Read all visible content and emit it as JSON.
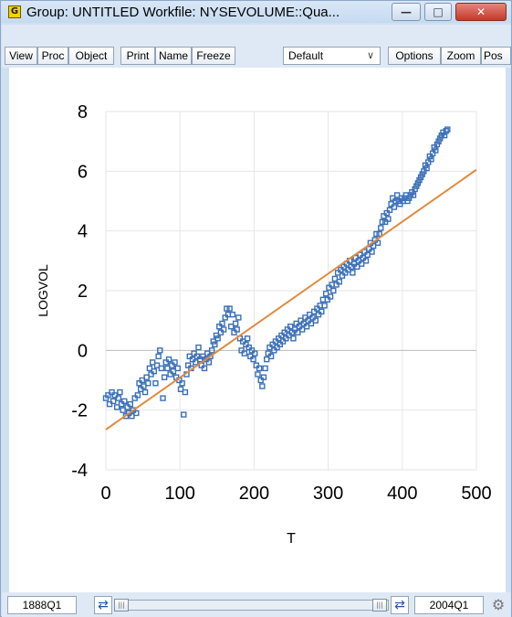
{
  "window": {
    "title": "Group: UNTITLED   Workfile: NYSEVOLUME::Qua...",
    "icon_letter": "G"
  },
  "toolbar": {
    "buttons": [
      "View",
      "Proc",
      "Object",
      "Print",
      "Name",
      "Freeze"
    ],
    "select_value": "Default",
    "buttons_right": [
      "Options",
      "Zoom",
      "Pos"
    ]
  },
  "chart_data": {
    "type": "scatter",
    "xlabel": "T",
    "ylabel": "LOGVOL",
    "xlim": [
      0,
      500
    ],
    "ylim": [
      -4,
      8
    ],
    "x_ticks": [
      "0",
      "100",
      "200",
      "300",
      "400",
      "500"
    ],
    "y_ticks": [
      "8",
      "6",
      "4",
      "2",
      "0",
      "-2",
      "-4"
    ],
    "grid": true,
    "marker": "open-square",
    "fit_line": {
      "from": [
        0,
        -2.65
      ],
      "to": [
        500,
        6.05
      ]
    },
    "series": [
      {
        "points": [
          [
            0,
            -1.6
          ],
          [
            3,
            -1.5
          ],
          [
            5,
            -1.8
          ],
          [
            8,
            -1.4
          ],
          [
            10,
            -1.7
          ],
          [
            12,
            -1.5
          ],
          [
            15,
            -1.9
          ],
          [
            17,
            -1.6
          ],
          [
            19,
            -1.4
          ],
          [
            21,
            -1.8
          ],
          [
            23,
            -2.0
          ],
          [
            25,
            -1.7
          ],
          [
            27,
            -2.2
          ],
          [
            29,
            -1.9
          ],
          [
            31,
            -2.1
          ],
          [
            33,
            -1.8
          ],
          [
            35,
            -2.2
          ],
          [
            37,
            -2.0
          ],
          [
            39,
            -1.6
          ],
          [
            41,
            -2.1
          ],
          [
            43,
            -1.5
          ],
          [
            45,
            -1.1
          ],
          [
            47,
            -1.3
          ],
          [
            49,
            -1.0
          ],
          [
            51,
            -1.2
          ],
          [
            53,
            -1.4
          ],
          [
            55,
            -0.9
          ],
          [
            57,
            -1.1
          ],
          [
            59,
            -0.6
          ],
          [
            61,
            -0.8
          ],
          [
            63,
            -0.4
          ],
          [
            65,
            -0.7
          ],
          [
            67,
            -1.1
          ],
          [
            69,
            -0.5
          ],
          [
            71,
            -0.2
          ],
          [
            73,
            0.0
          ],
          [
            75,
            -0.6
          ],
          [
            77,
            -1.6
          ],
          [
            79,
            -0.9
          ],
          [
            81,
            -0.4
          ],
          [
            83,
            -0.6
          ],
          [
            85,
            -0.3
          ],
          [
            87,
            -0.8
          ],
          [
            89,
            -0.5
          ],
          [
            91,
            -0.7
          ],
          [
            93,
            -0.4
          ],
          [
            95,
            -0.9
          ],
          [
            97,
            -0.6
          ],
          [
            99,
            -1.0
          ],
          [
            101,
            -1.3
          ],
          [
            103,
            -1.1
          ],
          [
            105,
            -2.15
          ],
          [
            107,
            -1.4
          ],
          [
            109,
            -0.8
          ],
          [
            111,
            -0.5
          ],
          [
            113,
            -0.2
          ],
          [
            115,
            -0.6
          ],
          [
            117,
            -0.3
          ],
          [
            119,
            -0.1
          ],
          [
            121,
            -0.4
          ],
          [
            123,
            -0.2
          ],
          [
            125,
            0.1
          ],
          [
            127,
            -0.3
          ],
          [
            129,
            -0.5
          ],
          [
            131,
            -0.2
          ],
          [
            133,
            -0.6
          ],
          [
            135,
            -0.3
          ],
          [
            137,
            -0.1
          ],
          [
            139,
            -0.4
          ],
          [
            141,
            -0.2
          ],
          [
            143,
            0.0
          ],
          [
            145,
            0.3
          ],
          [
            147,
            0.2
          ],
          [
            149,
            0.5
          ],
          [
            151,
            0.4
          ],
          [
            153,
            0.8
          ],
          [
            155,
            0.6
          ],
          [
            157,
            0.9
          ],
          [
            159,
            0.7
          ],
          [
            161,
            1.1
          ],
          [
            163,
            1.4
          ],
          [
            165,
            1.2
          ],
          [
            167,
            1.4
          ],
          [
            169,
            0.8
          ],
          [
            171,
            1.2
          ],
          [
            173,
            0.6
          ],
          [
            175,
            0.9
          ],
          [
            177,
            0.7
          ],
          [
            179,
            1.1
          ],
          [
            181,
            0.4
          ],
          [
            183,
            0.0
          ],
          [
            185,
            0.3
          ],
          [
            187,
            -0.1
          ],
          [
            189,
            0.2
          ],
          [
            191,
            0.4
          ],
          [
            193,
            0.1
          ],
          [
            195,
            -0.2
          ],
          [
            197,
            0.0
          ],
          [
            199,
            -0.3
          ],
          [
            201,
            -0.1
          ],
          [
            203,
            -0.5
          ],
          [
            205,
            -0.8
          ],
          [
            207,
            -0.6
          ],
          [
            209,
            -1.0
          ],
          [
            211,
            -1.2
          ],
          [
            213,
            -0.9
          ],
          [
            215,
            -0.6
          ],
          [
            217,
            -0.3
          ],
          [
            219,
            -0.1
          ],
          [
            221,
            0.1
          ],
          [
            223,
            -0.2
          ],
          [
            225,
            0.2
          ],
          [
            227,
            0.0
          ],
          [
            229,
            0.3
          ],
          [
            231,
            0.1
          ],
          [
            233,
            0.4
          ],
          [
            235,
            0.2
          ],
          [
            237,
            0.5
          ],
          [
            239,
            0.3
          ],
          [
            241,
            0.6
          ],
          [
            243,
            0.4
          ],
          [
            245,
            0.7
          ],
          [
            247,
            0.5
          ],
          [
            249,
            0.8
          ],
          [
            251,
            0.6
          ],
          [
            253,
            0.4
          ],
          [
            255,
            0.7
          ],
          [
            257,
            0.9
          ],
          [
            259,
            0.6
          ],
          [
            261,
            0.8
          ],
          [
            263,
            1.0
          ],
          [
            265,
            0.7
          ],
          [
            267,
            0.9
          ],
          [
            269,
            1.1
          ],
          [
            271,
            0.8
          ],
          [
            273,
            1.0
          ],
          [
            275,
            1.2
          ],
          [
            277,
            0.9
          ],
          [
            279,
            1.1
          ],
          [
            281,
            1.3
          ],
          [
            283,
            1.0
          ],
          [
            285,
            1.4
          ],
          [
            287,
            1.2
          ],
          [
            289,
            1.5
          ],
          [
            291,
            1.3
          ],
          [
            293,
            1.7
          ],
          [
            295,
            1.5
          ],
          [
            297,
            1.9
          ],
          [
            299,
            1.7
          ],
          [
            301,
            2.1
          ],
          [
            303,
            1.8
          ],
          [
            305,
            2.2
          ],
          [
            307,
            2.0
          ],
          [
            309,
            2.4
          ],
          [
            311,
            2.2
          ],
          [
            313,
            2.6
          ],
          [
            315,
            2.3
          ],
          [
            317,
            2.7
          ],
          [
            319,
            2.5
          ],
          [
            321,
            2.8
          ],
          [
            323,
            2.6
          ],
          [
            325,
            2.9
          ],
          [
            327,
            2.7
          ],
          [
            329,
            3.0
          ],
          [
            331,
            2.8
          ],
          [
            333,
            2.6
          ],
          [
            335,
            2.9
          ],
          [
            337,
            3.1
          ],
          [
            339,
            2.8
          ],
          [
            341,
            3.0
          ],
          [
            343,
            3.2
          ],
          [
            345,
            2.9
          ],
          [
            347,
            3.1
          ],
          [
            349,
            3.3
          ],
          [
            351,
            3.0
          ],
          [
            353,
            3.2
          ],
          [
            355,
            3.4
          ],
          [
            357,
            3.6
          ],
          [
            359,
            3.3
          ],
          [
            361,
            3.5
          ],
          [
            363,
            3.7
          ],
          [
            365,
            3.9
          ],
          [
            367,
            3.6
          ],
          [
            369,
            3.9
          ],
          [
            371,
            4.1
          ],
          [
            373,
            4.3
          ],
          [
            375,
            4.5
          ],
          [
            377,
            4.3
          ],
          [
            379,
            4.6
          ],
          [
            381,
            4.4
          ],
          [
            383,
            4.7
          ],
          [
            385,
            4.9
          ],
          [
            387,
            5.1
          ],
          [
            389,
            4.8
          ],
          [
            391,
            5.0
          ],
          [
            393,
            5.2
          ],
          [
            395,
            5.0
          ],
          [
            397,
            4.9
          ],
          [
            399,
            5.1
          ],
          [
            401,
            5.0
          ],
          [
            403,
            5.1
          ],
          [
            405,
            5.2
          ],
          [
            407,
            5.0
          ],
          [
            409,
            5.1
          ],
          [
            411,
            5.2
          ],
          [
            413,
            5.3
          ],
          [
            415,
            5.2
          ],
          [
            417,
            5.4
          ],
          [
            419,
            5.5
          ],
          [
            421,
            5.6
          ],
          [
            423,
            5.7
          ],
          [
            425,
            5.8
          ],
          [
            427,
            5.9
          ],
          [
            429,
            6.0
          ],
          [
            431,
            6.2
          ],
          [
            433,
            6.1
          ],
          [
            435,
            6.3
          ],
          [
            437,
            6.5
          ],
          [
            439,
            6.4
          ],
          [
            441,
            6.6
          ],
          [
            443,
            6.8
          ],
          [
            445,
            6.7
          ],
          [
            447,
            6.9
          ],
          [
            449,
            7.0
          ],
          [
            451,
            7.1
          ],
          [
            453,
            7.2
          ],
          [
            455,
            7.3
          ],
          [
            457,
            7.2
          ],
          [
            459,
            7.35
          ],
          [
            461,
            7.4
          ]
        ]
      }
    ]
  },
  "statusbar": {
    "start": "1888Q1",
    "end": "2004Q1"
  },
  "colors": {
    "marker": "#3a6fb8",
    "fit_line": "#e08a3c",
    "grid": "#e6e6e6"
  }
}
